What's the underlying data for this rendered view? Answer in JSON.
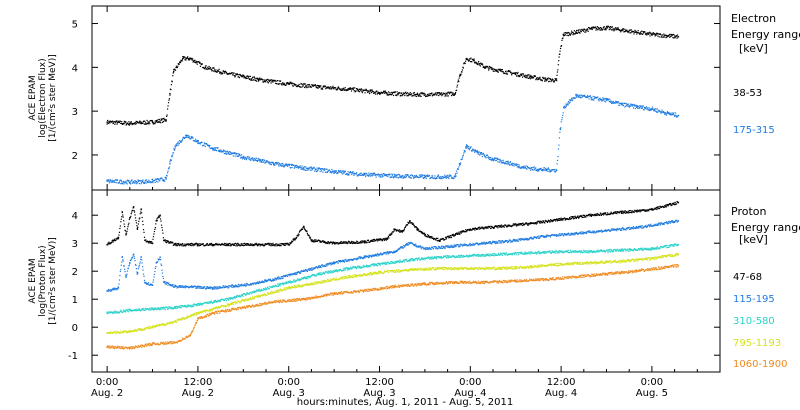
{
  "chart_data": [
    {
      "type": "scatter",
      "panel": "electron",
      "ylabel_lines": [
        "ACE EPAM",
        "log(Electron Flux)",
        "[1/(cm²s ster MeV)]"
      ],
      "legend_title_lines": [
        "Electron",
        "Energy range",
        "[keV]"
      ],
      "legend_placement": "right",
      "ylim": [
        1.2,
        5.4
      ],
      "yticks": [
        2,
        3,
        4,
        5
      ],
      "grid": false,
      "series": [
        {
          "name": "38-53",
          "color": "#000000",
          "points": [
            [
              0,
              2.75
            ],
            [
              3,
              2.72
            ],
            [
              6,
              2.75
            ],
            [
              7.8,
              2.8
            ],
            [
              8.3,
              3.4
            ],
            [
              8.8,
              3.9
            ],
            [
              10,
              4.2
            ],
            [
              11,
              4.2
            ],
            [
              13,
              4.0
            ],
            [
              16,
              3.85
            ],
            [
              20,
              3.72
            ],
            [
              24,
              3.62
            ],
            [
              28,
              3.55
            ],
            [
              32,
              3.5
            ],
            [
              36,
              3.42
            ],
            [
              40,
              3.38
            ],
            [
              44,
              3.38
            ],
            [
              46,
              3.4
            ],
            [
              46.6,
              3.8
            ],
            [
              47.5,
              4.2
            ],
            [
              48.5,
              4.15
            ],
            [
              50,
              4.0
            ],
            [
              52,
              3.92
            ],
            [
              54,
              3.85
            ],
            [
              56,
              3.78
            ],
            [
              58,
              3.72
            ],
            [
              59.4,
              3.7
            ],
            [
              59.8,
              4.3
            ],
            [
              60.3,
              4.75
            ],
            [
              62,
              4.8
            ],
            [
              64,
              4.88
            ],
            [
              66,
              4.9
            ],
            [
              68,
              4.85
            ],
            [
              70,
              4.8
            ],
            [
              72,
              4.75
            ],
            [
              74,
              4.72
            ],
            [
              75.5,
              4.7
            ]
          ]
        },
        {
          "name": "175-315",
          "color": "#1f7be0",
          "points": [
            [
              0,
              1.4
            ],
            [
              3,
              1.38
            ],
            [
              6,
              1.4
            ],
            [
              7.8,
              1.45
            ],
            [
              8.3,
              1.8
            ],
            [
              9,
              2.2
            ],
            [
              10.5,
              2.45
            ],
            [
              12,
              2.3
            ],
            [
              14,
              2.15
            ],
            [
              18,
              1.95
            ],
            [
              22,
              1.8
            ],
            [
              26,
              1.7
            ],
            [
              30,
              1.62
            ],
            [
              34,
              1.55
            ],
            [
              38,
              1.52
            ],
            [
              42,
              1.5
            ],
            [
              46,
              1.5
            ],
            [
              46.6,
              1.8
            ],
            [
              47.5,
              2.2
            ],
            [
              49,
              2.05
            ],
            [
              51,
              1.9
            ],
            [
              53,
              1.82
            ],
            [
              55,
              1.72
            ],
            [
              57,
              1.67
            ],
            [
              59.4,
              1.65
            ],
            [
              59.9,
              2.6
            ],
            [
              60.4,
              3.1
            ],
            [
              62,
              3.35
            ],
            [
              64,
              3.3
            ],
            [
              66,
              3.25
            ],
            [
              68,
              3.15
            ],
            [
              70,
              3.1
            ],
            [
              72,
              3.05
            ],
            [
              74,
              2.95
            ],
            [
              75.5,
              2.9
            ]
          ]
        }
      ]
    },
    {
      "type": "scatter",
      "panel": "proton",
      "ylabel_lines": [
        "ACE EPAM",
        "log(Proton Flux)",
        "[1/(cm²s ster MeV)]"
      ],
      "xlabel": "hours:minutes, Aug.  1, 2011 - Aug.  5, 2011",
      "legend_title_lines": [
        "Proton",
        "Energy range",
        "[keV]"
      ],
      "legend_placement": "right",
      "ylim": [
        -1.6,
        4.9
      ],
      "yticks": [
        -1,
        0,
        1,
        2,
        3,
        4
      ],
      "grid": false,
      "xlim": [
        -2,
        81
      ],
      "xticks": [
        {
          "x": 0,
          "time": "0:00",
          "date": "Aug. 2"
        },
        {
          "x": 12,
          "time": "12:00",
          "date": "Aug. 2"
        },
        {
          "x": 24,
          "time": "0:00",
          "date": "Aug. 3"
        },
        {
          "x": 36,
          "time": "12:00",
          "date": "Aug. 3"
        },
        {
          "x": 48,
          "time": "0:00",
          "date": "Aug. 4"
        },
        {
          "x": 60,
          "time": "12:00",
          "date": "Aug. 4"
        },
        {
          "x": 72,
          "time": "0:00",
          "date": "Aug. 5"
        }
      ],
      "series": [
        {
          "name": "47-68",
          "color": "#000000",
          "points": [
            [
              0,
              2.95
            ],
            [
              1.5,
              3.2
            ],
            [
              2,
              4.1
            ],
            [
              2.5,
              3.3
            ],
            [
              3,
              3.9
            ],
            [
              3.5,
              4.3
            ],
            [
              4,
              3.5
            ],
            [
              4.5,
              4.2
            ],
            [
              5,
              3.1
            ],
            [
              6,
              3.0
            ],
            [
              6.5,
              3.8
            ],
            [
              7,
              4.0
            ],
            [
              7.5,
              3.1
            ],
            [
              9,
              2.95
            ],
            [
              12,
              2.95
            ],
            [
              16,
              2.95
            ],
            [
              20,
              2.95
            ],
            [
              24,
              2.95
            ],
            [
              25,
              3.2
            ],
            [
              26,
              3.6
            ],
            [
              27,
              3.1
            ],
            [
              30,
              3.0
            ],
            [
              34,
              3.05
            ],
            [
              37,
              3.15
            ],
            [
              38,
              3.5
            ],
            [
              39,
              3.4
            ],
            [
              40,
              3.8
            ],
            [
              41,
              3.5
            ],
            [
              42,
              3.3
            ],
            [
              44,
              3.1
            ],
            [
              46,
              3.3
            ],
            [
              48,
              3.5
            ],
            [
              52,
              3.6
            ],
            [
              56,
              3.7
            ],
            [
              60,
              3.85
            ],
            [
              64,
              4.0
            ],
            [
              68,
              4.1
            ],
            [
              72,
              4.2
            ],
            [
              75.5,
              4.45
            ]
          ]
        },
        {
          "name": "115-195",
          "color": "#1f7be0",
          "points": [
            [
              0,
              1.3
            ],
            [
              1.5,
              1.4
            ],
            [
              2,
              2.5
            ],
            [
              2.5,
              1.8
            ],
            [
              3,
              2.3
            ],
            [
              3.5,
              2.6
            ],
            [
              4,
              1.9
            ],
            [
              4.5,
              2.5
            ],
            [
              5,
              1.6
            ],
            [
              6,
              1.5
            ],
            [
              6.5,
              2.3
            ],
            [
              7,
              2.5
            ],
            [
              7.5,
              1.6
            ],
            [
              9,
              1.45
            ],
            [
              14,
              1.4
            ],
            [
              18,
              1.5
            ],
            [
              22,
              1.7
            ],
            [
              26,
              2.0
            ],
            [
              30,
              2.3
            ],
            [
              34,
              2.5
            ],
            [
              38,
              2.7
            ],
            [
              40,
              3.0
            ],
            [
              42,
              2.8
            ],
            [
              46,
              2.9
            ],
            [
              50,
              3.0
            ],
            [
              54,
              3.1
            ],
            [
              58,
              3.25
            ],
            [
              62,
              3.35
            ],
            [
              66,
              3.45
            ],
            [
              70,
              3.55
            ],
            [
              75.5,
              3.8
            ]
          ]
        },
        {
          "name": "310-580",
          "color": "#29d2c9",
          "points": [
            [
              0,
              0.5
            ],
            [
              3,
              0.6
            ],
            [
              6,
              0.65
            ],
            [
              9,
              0.7
            ],
            [
              12,
              0.8
            ],
            [
              16,
              1.0
            ],
            [
              20,
              1.3
            ],
            [
              24,
              1.6
            ],
            [
              28,
              1.9
            ],
            [
              32,
              2.1
            ],
            [
              36,
              2.25
            ],
            [
              40,
              2.4
            ],
            [
              44,
              2.5
            ],
            [
              48,
              2.55
            ],
            [
              52,
              2.6
            ],
            [
              56,
              2.65
            ],
            [
              60,
              2.7
            ],
            [
              64,
              2.7
            ],
            [
              68,
              2.75
            ],
            [
              72,
              2.8
            ],
            [
              75.5,
              2.95
            ]
          ]
        },
        {
          "name": "795-1193",
          "color": "#d4e21a",
          "points": [
            [
              0,
              -0.2
            ],
            [
              3,
              -0.15
            ],
            [
              6,
              0.0
            ],
            [
              9,
              0.2
            ],
            [
              12,
              0.5
            ],
            [
              16,
              0.8
            ],
            [
              20,
              1.1
            ],
            [
              24,
              1.4
            ],
            [
              28,
              1.6
            ],
            [
              32,
              1.8
            ],
            [
              36,
              1.95
            ],
            [
              40,
              2.05
            ],
            [
              44,
              2.1
            ],
            [
              48,
              2.1
            ],
            [
              52,
              2.1
            ],
            [
              56,
              2.15
            ],
            [
              60,
              2.25
            ],
            [
              64,
              2.3
            ],
            [
              68,
              2.35
            ],
            [
              72,
              2.45
            ],
            [
              75.5,
              2.6
            ]
          ]
        },
        {
          "name": "1060-1900",
          "color": "#f08a1e",
          "points": [
            [
              0,
              -0.7
            ],
            [
              3,
              -0.75
            ],
            [
              6,
              -0.6
            ],
            [
              9,
              -0.55
            ],
            [
              11,
              -0.3
            ],
            [
              12,
              0.3
            ],
            [
              14,
              0.5
            ],
            [
              18,
              0.7
            ],
            [
              22,
              0.9
            ],
            [
              26,
              1.0
            ],
            [
              30,
              1.2
            ],
            [
              34,
              1.3
            ],
            [
              38,
              1.45
            ],
            [
              42,
              1.55
            ],
            [
              46,
              1.6
            ],
            [
              50,
              1.6
            ],
            [
              54,
              1.65
            ],
            [
              58,
              1.7
            ],
            [
              62,
              1.8
            ],
            [
              66,
              1.9
            ],
            [
              70,
              2.0
            ],
            [
              75.5,
              2.2
            ]
          ]
        }
      ]
    }
  ]
}
